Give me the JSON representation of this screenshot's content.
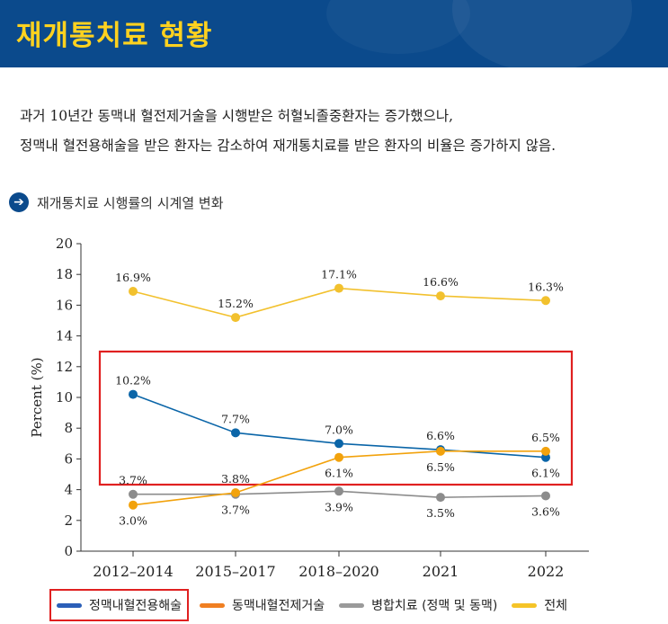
{
  "header": {
    "title": "재개통치료 현황"
  },
  "description": [
    "과거 10년간 동맥내 혈전제거술을 시행받은 허혈뇌졸중환자는 증가했으나,",
    "정맥내 혈전용해술을 받은 환자는 감소하여 재개통치료를 받은 환자의 비율은 증가하지 않음."
  ],
  "section": {
    "title": "재개통치료 시행률의 시계열 변화",
    "icon": "arrow-right-icon"
  },
  "colors": {
    "header_bg": "#0b4a8c",
    "title": "#ffd21f",
    "highlight_box": "#e02020"
  },
  "chart_data": {
    "type": "line",
    "categories": [
      "2012–2014",
      "2015–2017",
      "2018–2020",
      "2021",
      "2022"
    ],
    "ylabel": "Percent (%)",
    "ylim": [
      0,
      20
    ],
    "yticks": [
      0,
      2,
      4,
      6,
      8,
      10,
      12,
      14,
      16,
      18,
      20
    ],
    "grid": false,
    "legend_position": "bottom",
    "series": [
      {
        "name": "정맥내혈전용해술",
        "color": "#0a65a8",
        "values": [
          10.2,
          7.7,
          7.0,
          6.6,
          6.1
        ],
        "labels": [
          "10.2%",
          "7.7%",
          "7.0%",
          "6.6%",
          "6.1%"
        ],
        "label_pos": [
          "above",
          "above",
          "above",
          "above",
          "below"
        ]
      },
      {
        "name": "동맥내혈전제거술",
        "color": "#f2a20c",
        "values": [
          3.0,
          3.8,
          6.1,
          6.5,
          6.5
        ],
        "labels": [
          "3.0%",
          "3.8%",
          "6.1%",
          "6.5%",
          "6.5%"
        ],
        "label_pos": [
          "below",
          "above",
          "below",
          "below",
          "above"
        ]
      },
      {
        "name": "병합치료 (정맥 및 동맥)",
        "color": "#8c8c8c",
        "values": [
          3.7,
          3.7,
          3.9,
          3.5,
          3.6
        ],
        "labels": [
          "3.7%",
          "3.7%",
          "3.9%",
          "3.5%",
          "3.6%"
        ],
        "label_pos": [
          "above",
          "below",
          "below",
          "below",
          "below"
        ]
      },
      {
        "name": "전체",
        "color": "#f2c12e",
        "values": [
          16.9,
          15.2,
          17.1,
          16.6,
          16.3
        ],
        "labels": [
          "16.9%",
          "15.2%",
          "17.1%",
          "16.6%",
          "16.3%"
        ],
        "label_pos": [
          "above",
          "above",
          "above",
          "above",
          "above"
        ]
      }
    ],
    "legend": [
      {
        "name": "정맥내혈전용해술",
        "color": "#2b5fb8"
      },
      {
        "name": "동맥내혈전제거술",
        "color": "#f07f22"
      },
      {
        "name": "병합치료 (정맥 및 동맥)",
        "color": "#9a9a9a"
      },
      {
        "name": "전체",
        "color": "#f5c428"
      }
    ]
  }
}
